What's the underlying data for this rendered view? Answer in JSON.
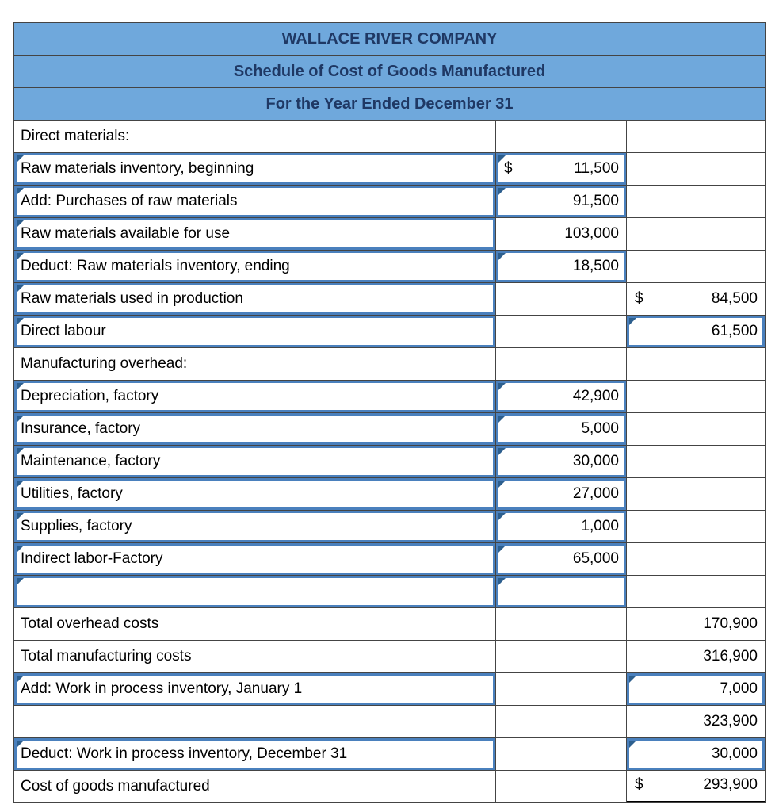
{
  "header": {
    "company": "WALLACE RIVER COMPANY",
    "title": "Schedule of Cost of Goods Manufactured",
    "period": "For the Year Ended December 31"
  },
  "colors": {
    "header_bg": "#6fa8dc",
    "header_text": "#1f3864",
    "input_border": "#4a80bd",
    "caret": "#2d5f8e",
    "grid": "#444444"
  },
  "rows": [
    {
      "label": "Direct materials:",
      "label_input": false,
      "col2": null,
      "col3": null
    },
    {
      "label": "Raw materials inventory, beginning",
      "label_input": true,
      "col2": {
        "dollar": "$",
        "value": "11,500",
        "input": true
      },
      "col3": null
    },
    {
      "label": "Add: Purchases of raw materials",
      "label_input": true,
      "col2": {
        "value": "91,500",
        "input": true
      },
      "col3": null
    },
    {
      "label": "Raw materials available for use",
      "label_input": true,
      "col2": {
        "value": "103,000",
        "input": false
      },
      "col3": null
    },
    {
      "label": "Deduct: Raw materials inventory, ending",
      "label_input": true,
      "col2": {
        "value": "18,500",
        "input": true
      },
      "col3": null
    },
    {
      "label": "Raw materials used in production",
      "label_input": true,
      "col2": null,
      "col3": {
        "dollar": "$",
        "value": "84,500",
        "input": false
      }
    },
    {
      "label": "Direct labour",
      "label_input": true,
      "col2": null,
      "col3": {
        "value": "61,500",
        "input": true
      }
    },
    {
      "label": "Manufacturing overhead:",
      "label_input": false,
      "col2": null,
      "col3": null
    },
    {
      "label": "Depreciation, factory",
      "label_input": true,
      "col2": {
        "value": "42,900",
        "input": true
      },
      "col3": null
    },
    {
      "label": "Insurance, factory",
      "label_input": true,
      "col2": {
        "value": "5,000",
        "input": true
      },
      "col3": null
    },
    {
      "label": "Maintenance, factory",
      "label_input": true,
      "col2": {
        "value": "30,000",
        "input": true
      },
      "col3": null
    },
    {
      "label": "Utilities, factory",
      "label_input": true,
      "col2": {
        "value": "27,000",
        "input": true
      },
      "col3": null
    },
    {
      "label": "Supplies, factory",
      "label_input": true,
      "col2": {
        "value": "1,000",
        "input": true
      },
      "col3": null
    },
    {
      "label": "Indirect labor-Factory",
      "label_input": true,
      "col2": {
        "value": "65,000",
        "input": true
      },
      "col3": null
    },
    {
      "label": "",
      "label_input": true,
      "col2": {
        "value": "",
        "input": true
      },
      "col3": null
    },
    {
      "label": "Total overhead costs",
      "label_input": false,
      "col2": null,
      "col3": {
        "value": "170,900",
        "input": false
      }
    },
    {
      "label": "Total manufacturing costs",
      "label_input": false,
      "col2": null,
      "col3": {
        "value": "316,900",
        "input": false
      }
    },
    {
      "label": "Add: Work in process inventory, January 1",
      "label_input": true,
      "col2": null,
      "col3": {
        "value": "7,000",
        "input": true
      }
    },
    {
      "label": "",
      "label_input": false,
      "col2": null,
      "col3": {
        "value": "323,900",
        "input": false
      }
    },
    {
      "label": "Deduct: Work in process inventory, December 31",
      "label_input": true,
      "col2": null,
      "col3": {
        "value": "30,000",
        "input": true
      }
    },
    {
      "label": "Cost of goods manufactured",
      "label_input": false,
      "col2": null,
      "col3": {
        "dollar": "$",
        "value": "293,900",
        "input": false,
        "double_underline": true
      }
    }
  ]
}
